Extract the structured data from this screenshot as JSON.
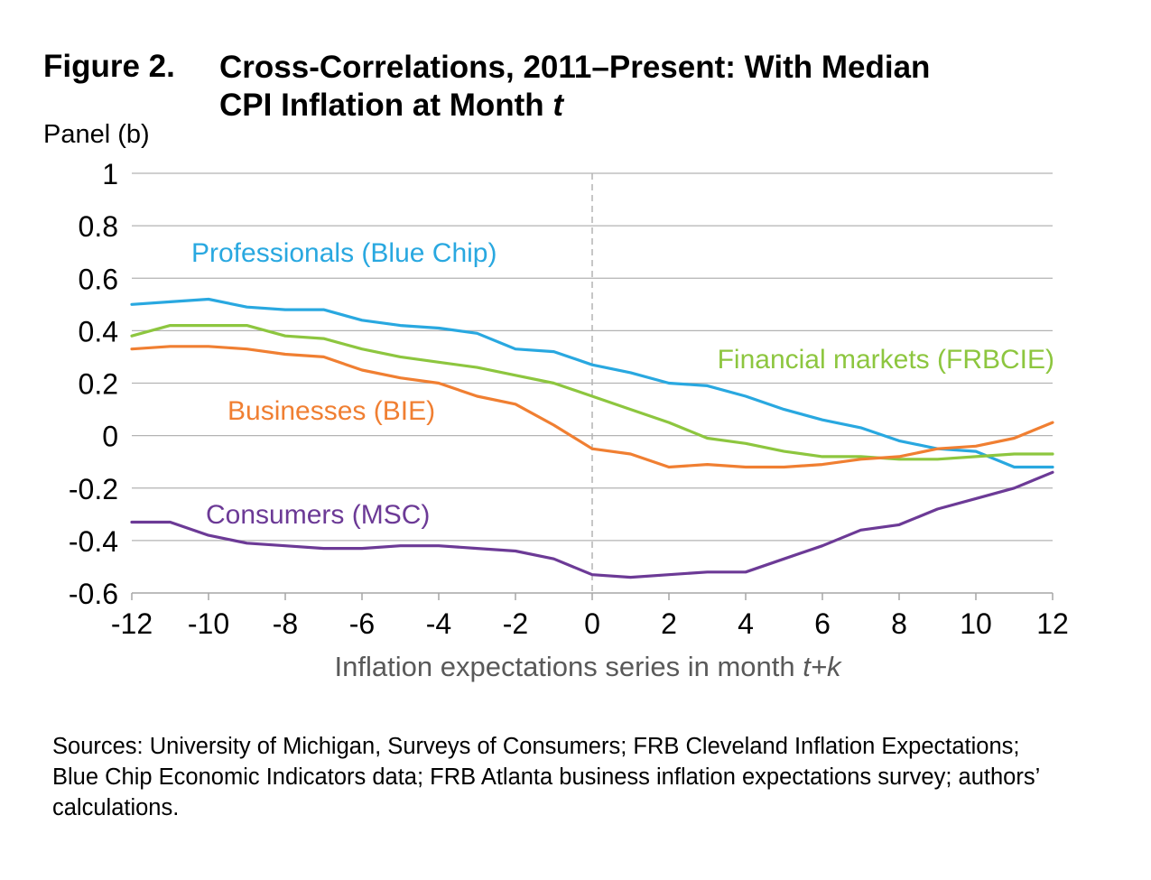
{
  "figure": {
    "number": "Figure 2.",
    "title_line1": "Cross-Correlations, 2011–Present: With Median",
    "title_line2_prefix": "CPI Inflation at Month ",
    "title_line2_italic": "t",
    "panel": "Panel (b)"
  },
  "sources": "Sources: University of Michigan, Surveys of Consumers; FRB Cleveland Inflation Expectations; Blue Chip Economic Indicators data; FRB Atlanta business inflation expectations survey; authors’ calculations.",
  "chart_data": {
    "type": "line",
    "xlabel_prefix": "Inflation expectations series in month ",
    "xlabel_italic": "t+k",
    "ylabel": "",
    "xlim": [
      -12,
      12
    ],
    "ylim": [
      -0.6,
      1
    ],
    "xticks": [
      -12,
      -10,
      -8,
      -6,
      -4,
      -2,
      0,
      2,
      4,
      6,
      8,
      10,
      12
    ],
    "ytick_labels": [
      "1",
      "0.8",
      "0.6",
      "0.4",
      "0.2",
      "0",
      "-0.2",
      "-0.4",
      "-0.6"
    ],
    "yticks": [
      1,
      0.8,
      0.6,
      0.4,
      0.2,
      0,
      -0.2,
      -0.4,
      -0.6
    ],
    "grid": "horizontal",
    "reference_line_x": 0,
    "x": [
      -12,
      -11,
      -10,
      -9,
      -8,
      -7,
      -6,
      -5,
      -4,
      -3,
      -2,
      -1,
      0,
      1,
      2,
      3,
      4,
      5,
      6,
      7,
      8,
      9,
      10,
      11,
      12
    ],
    "series": [
      {
        "name": "Professionals (Blue Chip)",
        "color": "#29A8E0",
        "values": [
          0.5,
          0.51,
          0.52,
          0.49,
          0.48,
          0.48,
          0.44,
          0.42,
          0.41,
          0.39,
          0.33,
          0.32,
          0.27,
          0.24,
          0.2,
          0.19,
          0.15,
          0.1,
          0.06,
          0.03,
          -0.02,
          -0.05,
          -0.06,
          -0.12,
          -0.12
        ]
      },
      {
        "name": "Financial markets (FRBCIE)",
        "color": "#8DC63F",
        "values": [
          0.38,
          0.42,
          0.42,
          0.42,
          0.38,
          0.37,
          0.33,
          0.3,
          0.28,
          0.26,
          0.23,
          0.2,
          0.15,
          0.1,
          0.05,
          -0.01,
          -0.03,
          -0.06,
          -0.08,
          -0.08,
          -0.09,
          -0.09,
          -0.08,
          -0.07,
          -0.07
        ]
      },
      {
        "name": "Businesses (BIE)",
        "color": "#F07F32",
        "values": [
          0.33,
          0.34,
          0.34,
          0.33,
          0.31,
          0.3,
          0.25,
          0.22,
          0.2,
          0.15,
          0.12,
          0.04,
          -0.05,
          -0.07,
          -0.12,
          -0.11,
          -0.12,
          -0.12,
          -0.11,
          -0.09,
          -0.08,
          -0.05,
          -0.04,
          -0.01,
          0.05
        ]
      },
      {
        "name": "Consumers (MSC)",
        "color": "#6C3A96",
        "values": [
          -0.33,
          -0.33,
          -0.38,
          -0.41,
          -0.42,
          -0.43,
          -0.43,
          -0.42,
          -0.42,
          -0.43,
          -0.44,
          -0.47,
          -0.53,
          -0.54,
          -0.53,
          -0.52,
          -0.52,
          -0.47,
          -0.42,
          -0.36,
          -0.34,
          -0.28,
          -0.24,
          -0.2,
          -0.14
        ]
      }
    ],
    "labels": [
      {
        "text": "Professionals (Blue Chip)",
        "color": "#29A8E0"
      },
      {
        "text": "Financial markets (FRBCIE)",
        "color": "#8DC63F"
      },
      {
        "text": "Businesses (BIE)",
        "color": "#F07F32"
      },
      {
        "text": "Consumers (MSC)",
        "color": "#6C3A96"
      }
    ]
  }
}
